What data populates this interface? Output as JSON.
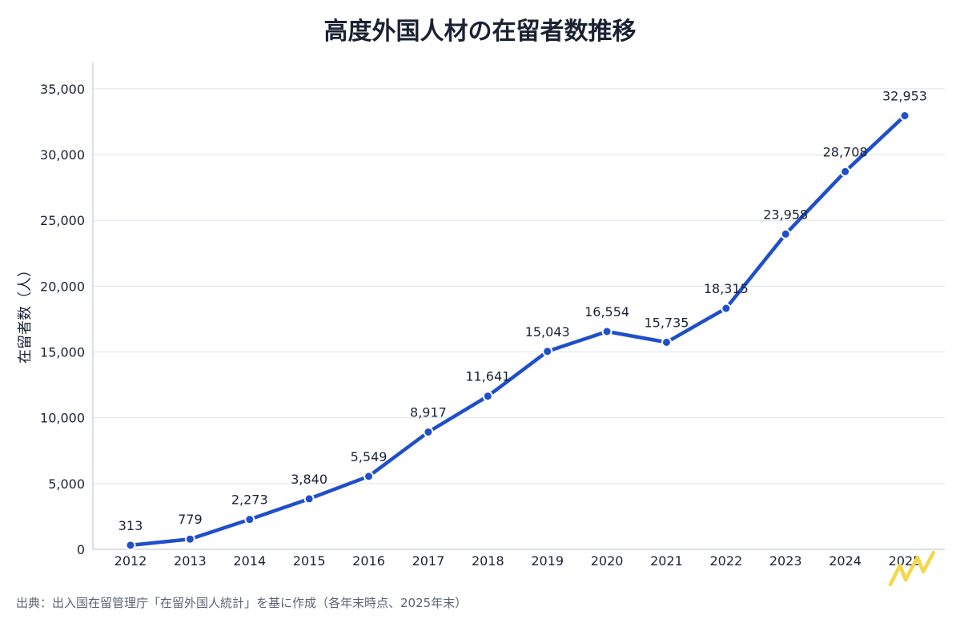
{
  "chart_data": {
    "type": "line",
    "title": "高度外国人材の在留者数推移",
    "ylabel": "在留者数（人）",
    "xlabel": "",
    "x": [
      "2012",
      "2013",
      "2014",
      "2015",
      "2016",
      "2017",
      "2018",
      "2019",
      "2020",
      "2021",
      "2022",
      "2023",
      "2024",
      "2025"
    ],
    "series": [
      {
        "values": [
          313,
          779,
          2273,
          3840,
          5549,
          8917,
          11641,
          15043,
          16554,
          15735,
          18315,
          23958,
          28708,
          32953
        ],
        "data_labels": [
          "313",
          "779",
          "2,273",
          "3,840",
          "5,549",
          "8,917",
          "11,641",
          "15,043",
          "16,554",
          "15,735",
          "18,315",
          "23,958",
          "28,708",
          "32,953"
        ],
        "color": "#1f4fc9"
      }
    ],
    "yticks": [
      0,
      5000,
      10000,
      15000,
      20000,
      25000,
      30000,
      35000
    ],
    "ytick_labels": [
      "0",
      "5,000",
      "10,000",
      "15,000",
      "20,000",
      "25,000",
      "30,000",
      "35,000"
    ],
    "ylim": [
      0,
      37000
    ],
    "grid": true,
    "legend": "none",
    "source": "出典：出入国在留管理庁「在留外国人統計」を基に作成（各年末時点、2025年末）"
  },
  "colors": {
    "line": "#1f4fc9",
    "grid": "#dde2ee",
    "axis": "#b8bfcc",
    "logo": "#f5d84a"
  }
}
